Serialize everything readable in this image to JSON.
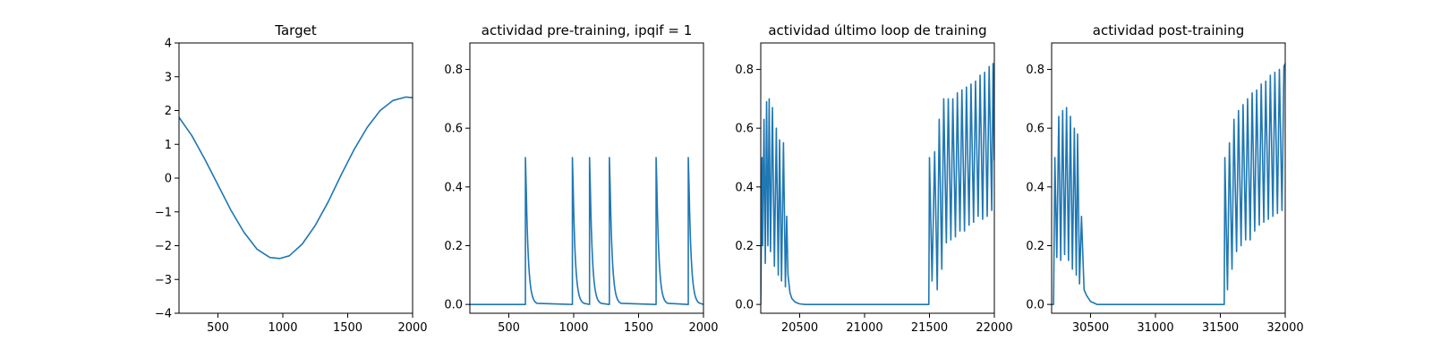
{
  "colors": {
    "line": "#1f77b4",
    "axis": "#000000",
    "background": "#ffffff"
  },
  "chart_data": [
    {
      "type": "line",
      "title": "Target",
      "xlim": [
        200,
        2000
      ],
      "ylim": [
        -4,
        4
      ],
      "xticks": [
        500,
        1000,
        1500,
        2000
      ],
      "yticks": [
        -4,
        -3,
        -2,
        -1,
        0,
        1,
        2,
        3,
        4
      ],
      "xtick_labels": [
        "500",
        "1000",
        "1500",
        "2000"
      ],
      "ytick_labels": [
        "−4",
        "−3",
        "−2",
        "−1",
        "0",
        "1",
        "2",
        "3",
        "4"
      ],
      "series": [
        {
          "x": [
            200,
            300,
            400,
            500,
            600,
            700,
            800,
            900,
            975,
            1050,
            1150,
            1250,
            1350,
            1450,
            1550,
            1650,
            1750,
            1850,
            1950,
            2000
          ],
          "y": [
            1.8,
            1.25,
            0.55,
            -0.2,
            -0.95,
            -1.6,
            -2.1,
            -2.35,
            -2.38,
            -2.3,
            -1.95,
            -1.4,
            -0.7,
            0.1,
            0.85,
            1.5,
            2.0,
            2.3,
            2.4,
            2.38
          ]
        }
      ]
    },
    {
      "type": "line",
      "title": "actividad pre-training, ipqif = 1",
      "xlim": [
        200,
        2000
      ],
      "ylim": [
        -0.03,
        0.89
      ],
      "xticks": [
        500,
        1000,
        1500,
        2000
      ],
      "yticks": [
        0.0,
        0.2,
        0.4,
        0.6,
        0.8
      ],
      "xtick_labels": [
        "500",
        "1000",
        "1500",
        "2000"
      ],
      "ytick_labels": [
        "0.0",
        "0.2",
        "0.4",
        "0.6",
        "0.8"
      ],
      "baseline": 0.0,
      "spikes": [
        {
          "x": 628,
          "peak": 0.5
        },
        {
          "x": 990,
          "peak": 0.5
        },
        {
          "x": 1122,
          "peak": 0.5
        },
        {
          "x": 1275,
          "peak": 0.5
        },
        {
          "x": 1635,
          "peak": 0.5
        },
        {
          "x": 1883,
          "peak": 0.5
        }
      ]
    },
    {
      "type": "line",
      "title": "actividad último loop de training",
      "xlim": [
        20200,
        22000
      ],
      "ylim": [
        -0.03,
        0.89
      ],
      "xticks": [
        20500,
        21000,
        21500,
        22000
      ],
      "yticks": [
        0.0,
        0.2,
        0.4,
        0.6,
        0.8
      ],
      "xtick_labels": [
        "20500",
        "21000",
        "21500",
        "22000"
      ],
      "ytick_labels": [
        "0.0",
        "0.2",
        "0.4",
        "0.6",
        "0.8"
      ],
      "series": [
        {
          "x": [
            20200,
            20210,
            20215,
            20225,
            20235,
            20245,
            20255,
            20265,
            20275,
            20290,
            20305,
            20320,
            20335,
            20345,
            20360,
            20375,
            20390,
            20400,
            20410,
            20425,
            20440,
            20460,
            20480,
            20500,
            20540,
            20600,
            20800,
            21000,
            21200,
            21495,
            21500,
            21520,
            21540,
            21560,
            21575,
            21595,
            21610,
            21630,
            21645,
            21665,
            21680,
            21700,
            21715,
            21735,
            21750,
            21770,
            21785,
            21805,
            21820,
            21840,
            21855,
            21875,
            21890,
            21910,
            21925,
            21945,
            21960,
            21980,
            21990,
            22000
          ],
          "y": [
            0.0,
            0.5,
            0.2,
            0.63,
            0.14,
            0.69,
            0.2,
            0.7,
            0.18,
            0.67,
            0.13,
            0.6,
            0.1,
            0.56,
            0.08,
            0.55,
            0.06,
            0.3,
            0.1,
            0.04,
            0.02,
            0.01,
            0.005,
            0.002,
            0.0,
            0.0,
            0.0,
            0.0,
            0.0,
            0.0,
            0.5,
            0.08,
            0.52,
            0.05,
            0.63,
            0.12,
            0.7,
            0.21,
            0.7,
            0.22,
            0.7,
            0.23,
            0.72,
            0.25,
            0.73,
            0.25,
            0.74,
            0.27,
            0.75,
            0.28,
            0.76,
            0.3,
            0.78,
            0.29,
            0.79,
            0.3,
            0.81,
            0.32,
            0.82,
            0.49
          ]
        }
      ]
    },
    {
      "type": "line",
      "title": "actividad post-training",
      "xlim": [
        30200,
        32000
      ],
      "ylim": [
        -0.03,
        0.89
      ],
      "xticks": [
        30500,
        31000,
        31500,
        32000
      ],
      "yticks": [
        0.0,
        0.2,
        0.4,
        0.6,
        0.8
      ],
      "xtick_labels": [
        "30500",
        "31000",
        "31500",
        "32000"
      ],
      "ytick_labels": [
        "0.0",
        "0.2",
        "0.4",
        "0.6",
        "0.8"
      ],
      "series": [
        {
          "x": [
            30200,
            30215,
            30225,
            30240,
            30255,
            30270,
            30285,
            30300,
            30315,
            30330,
            30345,
            30360,
            30375,
            30390,
            30400,
            30415,
            30430,
            30450,
            30470,
            30500,
            30550,
            30700,
            31000,
            31300,
            31530,
            31535,
            31555,
            31570,
            31590,
            31605,
            31625,
            31640,
            31660,
            31675,
            31695,
            31710,
            31730,
            31745,
            31765,
            31780,
            31800,
            31815,
            31835,
            31850,
            31870,
            31885,
            31905,
            31920,
            31940,
            31955,
            31975,
            31990,
            32000
          ],
          "y": [
            0.0,
            0.0,
            0.5,
            0.16,
            0.64,
            0.15,
            0.66,
            0.17,
            0.67,
            0.15,
            0.64,
            0.12,
            0.6,
            0.1,
            0.58,
            0.07,
            0.3,
            0.05,
            0.03,
            0.01,
            0.0,
            0.0,
            0.0,
            0.0,
            0.0,
            0.5,
            0.05,
            0.55,
            0.12,
            0.63,
            0.18,
            0.66,
            0.2,
            0.68,
            0.22,
            0.7,
            0.22,
            0.72,
            0.25,
            0.73,
            0.27,
            0.75,
            0.28,
            0.76,
            0.29,
            0.78,
            0.3,
            0.79,
            0.31,
            0.8,
            0.32,
            0.81,
            0.82
          ]
        }
      ]
    }
  ]
}
